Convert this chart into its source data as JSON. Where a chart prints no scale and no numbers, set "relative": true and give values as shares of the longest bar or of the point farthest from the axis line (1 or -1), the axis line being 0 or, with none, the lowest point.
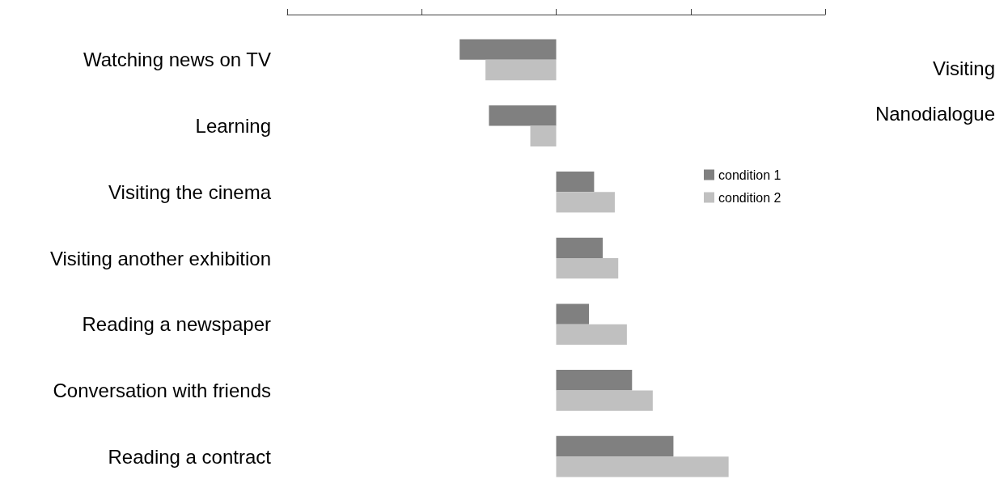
{
  "chart_data": {
    "type": "bar",
    "orientation": "horizontal",
    "relative": true,
    "categories": [
      "Watching news on TV",
      "Learning",
      "Visiting the cinema",
      "Visiting another exhibition",
      "Reading a newspaper",
      "Conversation with friends",
      "Reading a contract"
    ],
    "series": [
      {
        "name": "condition 1",
        "color": "#808080",
        "values": [
          -0.56,
          -0.39,
          0.22,
          0.27,
          0.19,
          0.44,
          0.68
        ]
      },
      {
        "name": "condition 2",
        "color": "#c0c0c0",
        "values": [
          -0.41,
          -0.15,
          0.34,
          0.36,
          0.41,
          0.56,
          1
        ]
      }
    ],
    "annotations": [
      "Visiting",
      "Nanodialogue"
    ],
    "legend": "right",
    "grid": false
  }
}
